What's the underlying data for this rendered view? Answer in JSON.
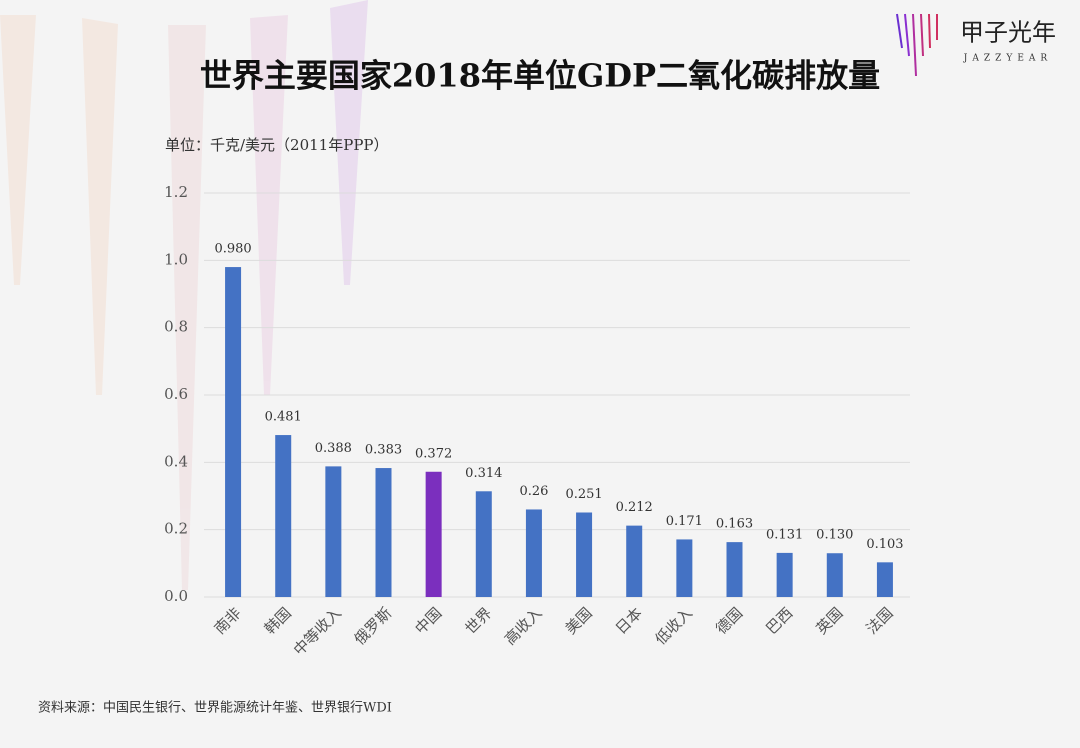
{
  "chart_data": {
    "type": "bar",
    "title": "世界主要国家2018年单位GDP二氧化碳排放量",
    "unit_label": "单位：千克/美元（2011年PPP）",
    "source": "资料来源：中国民生银行、世界能源统计年鉴、世界银行WDI",
    "logo": {
      "name": "甲子光年",
      "latin": "JAZZYEAR"
    },
    "categories": [
      "南非",
      "韩国",
      "中等收入",
      "俄罗斯",
      "中国",
      "世界",
      "高收入",
      "美国",
      "日本",
      "低收入",
      "德国",
      "巴西",
      "英国",
      "法国"
    ],
    "values": [
      0.98,
      0.481,
      0.388,
      0.383,
      0.372,
      0.314,
      0.26,
      0.251,
      0.212,
      0.171,
      0.163,
      0.131,
      0.13,
      0.103
    ],
    "value_labels": [
      "0.980",
      "0.481",
      "0.388",
      "0.383",
      "0.372",
      "0.314",
      "0.26",
      "0.251",
      "0.212",
      "0.171",
      "0.163",
      "0.131",
      "0.130",
      "0.103"
    ],
    "colors": [
      "#4472c4",
      "#4472c4",
      "#4472c4",
      "#4472c4",
      "#7b2fbe",
      "#4472c4",
      "#4472c4",
      "#4472c4",
      "#4472c4",
      "#4472c4",
      "#4472c4",
      "#4472c4",
      "#4472c4",
      "#4472c4"
    ],
    "ylim": [
      0,
      1.2
    ],
    "yticks": [
      {
        "value": 0,
        "label": "0.0"
      },
      0.2,
      0.4,
      0.6,
      0.8,
      {
        "value": 1,
        "label": "1.0"
      },
      1.2
    ],
    "grid": true
  }
}
